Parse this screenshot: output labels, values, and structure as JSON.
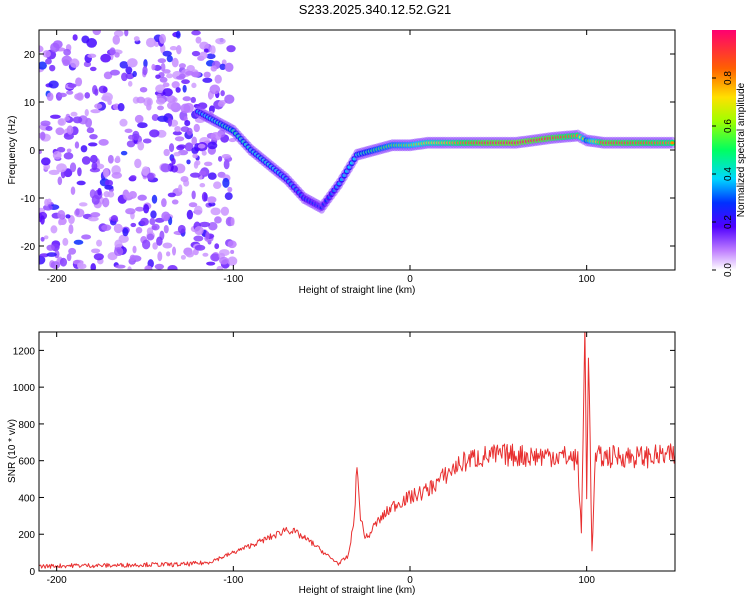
{
  "title": "S233.2025.340.12.52.G21",
  "chart_data": [
    {
      "type": "heatmap",
      "xlabel": "Height of straight line (km)",
      "ylabel": "Frequency (Hz)",
      "xlim": [
        -210,
        150
      ],
      "ylim": [
        -25,
        25
      ],
      "xticks": [
        -200,
        -100,
        0,
        100
      ],
      "yticks": [
        -20,
        -10,
        0,
        10,
        20
      ],
      "colorbar": {
        "label": "Normalized spectral amplitude",
        "ticks": [
          0.0,
          0.2,
          0.4,
          0.6,
          0.8
        ],
        "range": [
          0,
          1
        ]
      },
      "ridge": {
        "description": "dominant frequency track",
        "points": [
          {
            "x": -120,
            "y": 8,
            "amp": 0.35
          },
          {
            "x": -110,
            "y": 6,
            "amp": 0.4
          },
          {
            "x": -100,
            "y": 4,
            "amp": 0.45
          },
          {
            "x": -90,
            "y": 0,
            "amp": 0.4
          },
          {
            "x": -80,
            "y": -3,
            "amp": 0.4
          },
          {
            "x": -70,
            "y": -6,
            "amp": 0.35
          },
          {
            "x": -60,
            "y": -10,
            "amp": 0.3
          },
          {
            "x": -50,
            "y": -12,
            "amp": 0.25
          },
          {
            "x": -40,
            "y": -7,
            "amp": 0.35
          },
          {
            "x": -30,
            "y": -1,
            "amp": 0.4
          },
          {
            "x": -20,
            "y": 0,
            "amp": 0.5
          },
          {
            "x": -10,
            "y": 1,
            "amp": 0.55
          },
          {
            "x": 0,
            "y": 1,
            "amp": 0.6
          },
          {
            "x": 10,
            "y": 1.5,
            "amp": 0.7
          },
          {
            "x": 20,
            "y": 1.5,
            "amp": 0.75
          },
          {
            "x": 40,
            "y": 1.5,
            "amp": 0.9
          },
          {
            "x": 60,
            "y": 1.5,
            "amp": 0.95
          },
          {
            "x": 80,
            "y": 2.5,
            "amp": 0.9
          },
          {
            "x": 95,
            "y": 3,
            "amp": 0.8
          },
          {
            "x": 100,
            "y": 2,
            "amp": 0.5
          },
          {
            "x": 110,
            "y": 1.5,
            "amp": 0.9
          },
          {
            "x": 130,
            "y": 1.5,
            "amp": 0.85
          },
          {
            "x": 150,
            "y": 1.5,
            "amp": 0.8
          }
        ]
      }
    },
    {
      "type": "line",
      "xlabel": "Height of straight line (km)",
      "ylabel": "SNR (10 * v/v)",
      "xlim": [
        -210,
        150
      ],
      "ylim": [
        0,
        1300
      ],
      "xticks": [
        -200,
        -100,
        0,
        100
      ],
      "yticks": [
        0,
        200,
        400,
        600,
        800,
        1000,
        1200
      ],
      "series": [
        {
          "name": "SNR",
          "color": "#e83030",
          "x": [
            -210,
            -190,
            -170,
            -150,
            -130,
            -115,
            -105,
            -95,
            -85,
            -75,
            -70,
            -65,
            -60,
            -55,
            -50,
            -45,
            -40,
            -35,
            -32,
            -30,
            -28,
            -26,
            -24,
            -20,
            -15,
            -10,
            -5,
            0,
            5,
            10,
            15,
            20,
            25,
            30,
            35,
            40,
            50,
            60,
            70,
            80,
            90,
            95,
            97,
            99,
            100,
            101,
            103,
            105,
            110,
            120,
            130,
            140,
            150
          ],
          "values": [
            25,
            30,
            30,
            35,
            35,
            45,
            80,
            120,
            160,
            200,
            230,
            210,
            180,
            150,
            110,
            70,
            40,
            80,
            250,
            550,
            300,
            200,
            180,
            250,
            300,
            350,
            380,
            400,
            420,
            440,
            480,
            520,
            560,
            590,
            610,
            620,
            630,
            630,
            625,
            630,
            620,
            600,
            200,
            1300,
            400,
            1250,
            100,
            620,
            620,
            625,
            620,
            625,
            630
          ]
        }
      ]
    }
  ]
}
